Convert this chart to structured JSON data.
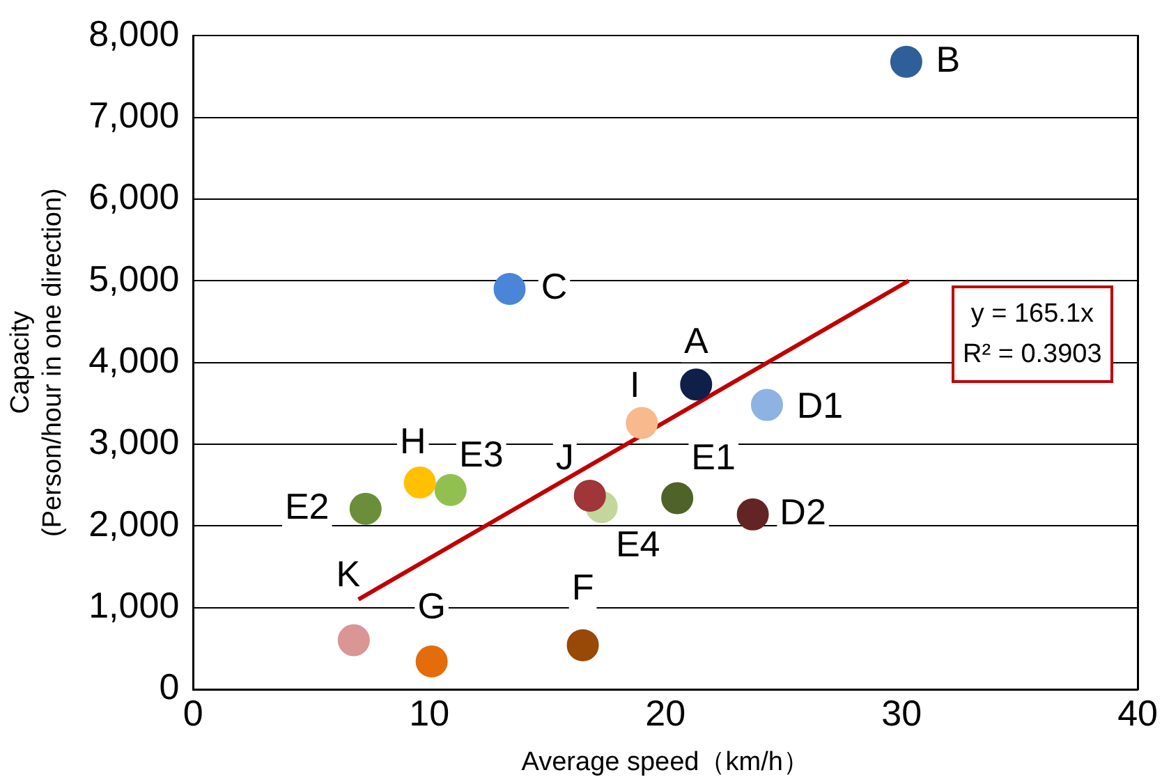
{
  "chart_data": {
    "type": "scatter",
    "xlabel": "Average speed（km/h）",
    "ylabel": "Capacity\n(Person/hour in one direction)",
    "xlim": [
      0,
      40
    ],
    "xticks": [
      0,
      10,
      20,
      30,
      40
    ],
    "ylim": [
      0,
      8000
    ],
    "yticks": [
      0,
      {
        "value": 1000,
        "label": "1,000"
      },
      {
        "value": 2000,
        "label": "2,000"
      },
      {
        "value": 3000,
        "label": "3,000"
      },
      {
        "value": 4000,
        "label": "4,000"
      },
      {
        "value": 5000,
        "label": "5,000"
      },
      {
        "value": 6000,
        "label": "6,000"
      },
      {
        "value": 7000,
        "label": "7,000"
      },
      {
        "value": 8000,
        "label": "8,000"
      }
    ],
    "grid": "y",
    "legend": false,
    "marker": "circle",
    "annotations": [
      "y = 165.1x",
      "R² = 0.3903"
    ],
    "series": [
      {
        "name": "B",
        "color": "#2f5f98",
        "x": [
          30.2
        ],
        "values": [
          7680
        ]
      },
      {
        "name": "C",
        "color": "#4a86d8",
        "x": [
          13.4
        ],
        "values": [
          4900
        ]
      },
      {
        "name": "A",
        "color": "#0f1f4a",
        "x": [
          21.3
        ],
        "values": [
          3730
        ]
      },
      {
        "name": "D1",
        "color": "#8db3e2",
        "x": [
          24.3
        ],
        "values": [
          3480
        ]
      },
      {
        "name": "I",
        "color": "#f8b98c",
        "x": [
          19.0
        ],
        "values": [
          3260
        ]
      },
      {
        "name": "H",
        "color": "#ffc000",
        "x": [
          9.6
        ],
        "values": [
          2530
        ]
      },
      {
        "name": "E3",
        "color": "#92c050",
        "x": [
          10.9
        ],
        "values": [
          2440
        ]
      },
      {
        "name": "E2",
        "color": "#6b8e3a",
        "x": [
          7.3
        ],
        "values": [
          2210
        ]
      },
      {
        "name": "J",
        "color": "#a0353a",
        "x": [
          16.8
        ],
        "values": [
          2370
        ]
      },
      {
        "name": "E4",
        "color": "#c3d69b",
        "x": [
          17.3
        ],
        "values": [
          2230
        ]
      },
      {
        "name": "E1",
        "color": "#4f6228",
        "x": [
          20.5
        ],
        "values": [
          2340
        ]
      },
      {
        "name": "D2",
        "color": "#632523",
        "x": [
          23.7
        ],
        "values": [
          2140
        ]
      },
      {
        "name": "K",
        "color": "#d99694",
        "x": [
          6.8
        ],
        "values": [
          600
        ]
      },
      {
        "name": "G",
        "color": "#e46c0a",
        "x": [
          10.1
        ],
        "values": [
          340
        ]
      },
      {
        "name": "F",
        "color": "#984807",
        "x": [
          16.5
        ],
        "values": [
          540
        ]
      },
      {
        "type": "line",
        "color": "#c00000",
        "x": [
          7.0,
          30.3
        ],
        "values": [
          1100,
          5000
        ],
        "marker": "none"
      }
    ]
  }
}
